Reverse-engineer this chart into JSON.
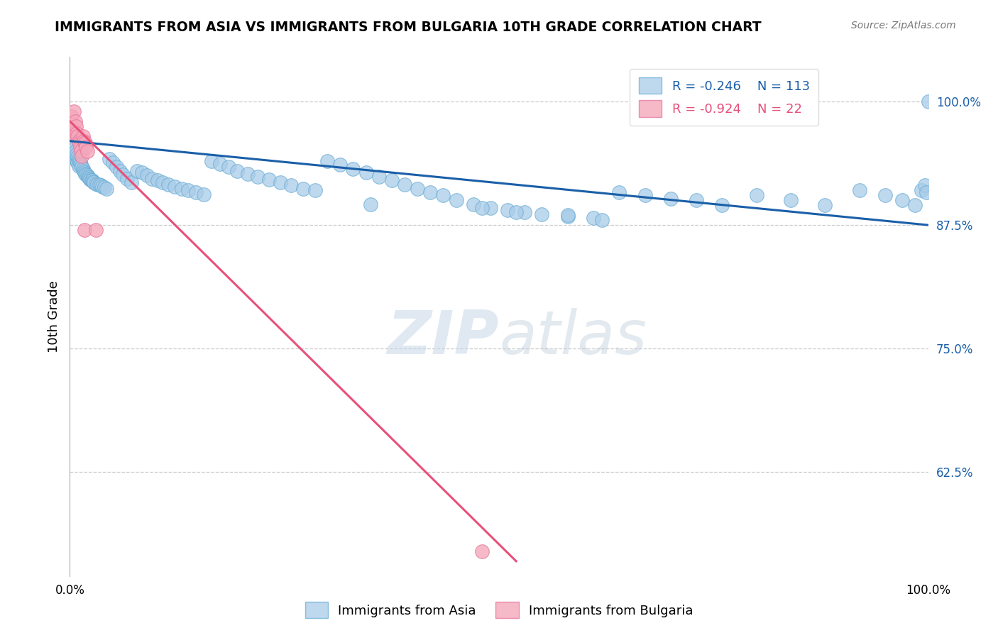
{
  "title": "IMMIGRANTS FROM ASIA VS IMMIGRANTS FROM BULGARIA 10TH GRADE CORRELATION CHART",
  "source": "Source: ZipAtlas.com",
  "ylabel": "10th Grade",
  "y_tick_labels": [
    "62.5%",
    "75.0%",
    "87.5%",
    "100.0%"
  ],
  "y_tick_values": [
    0.625,
    0.75,
    0.875,
    1.0
  ],
  "legend_blue_r": "R = -0.246",
  "legend_blue_n": "N = 113",
  "legend_pink_r": "R = -0.924",
  "legend_pink_n": "N = 22",
  "blue_color": "#a8cce8",
  "pink_color": "#f4a8bb",
  "blue_edge_color": "#6baed6",
  "pink_edge_color": "#e879a0",
  "blue_line_color": "#1a5fa8",
  "pink_line_color": "#e8507a",
  "background_color": "#ffffff",
  "grid_color": "#cccccc",
  "watermark_color": "#d0dce8",
  "blue_scatter_x": [
    0.001,
    0.002,
    0.002,
    0.003,
    0.003,
    0.004,
    0.004,
    0.005,
    0.005,
    0.006,
    0.006,
    0.007,
    0.007,
    0.008,
    0.008,
    0.009,
    0.009,
    0.01,
    0.01,
    0.011,
    0.012,
    0.013,
    0.014,
    0.015,
    0.016,
    0.017,
    0.018,
    0.019,
    0.02,
    0.021,
    0.022,
    0.023,
    0.024,
    0.025,
    0.026,
    0.027,
    0.028,
    0.03,
    0.032,
    0.034,
    0.036,
    0.038,
    0.04,
    0.043,
    0.046,
    0.05,
    0.054,
    0.058,
    0.062,
    0.067,
    0.072,
    0.078,
    0.084,
    0.09,
    0.096,
    0.102,
    0.108,
    0.115,
    0.122,
    0.13,
    0.138,
    0.147,
    0.156,
    0.165,
    0.175,
    0.185,
    0.195,
    0.207,
    0.219,
    0.232,
    0.245,
    0.258,
    0.272,
    0.286,
    0.3,
    0.315,
    0.33,
    0.345,
    0.36,
    0.375,
    0.39,
    0.405,
    0.42,
    0.435,
    0.45,
    0.47,
    0.49,
    0.51,
    0.53,
    0.55,
    0.58,
    0.61,
    0.64,
    0.67,
    0.7,
    0.73,
    0.76,
    0.8,
    0.84,
    0.88,
    0.92,
    0.95,
    0.97,
    0.985,
    0.992,
    0.996,
    0.998,
    1.0,
    0.35,
    0.48,
    0.52,
    0.58,
    0.62
  ],
  "blue_scatter_y": [
    0.96,
    0.965,
    0.958,
    0.962,
    0.955,
    0.96,
    0.95,
    0.956,
    0.948,
    0.953,
    0.944,
    0.95,
    0.942,
    0.947,
    0.94,
    0.944,
    0.938,
    0.942,
    0.935,
    0.94,
    0.938,
    0.936,
    0.934,
    0.932,
    0.93,
    0.928,
    0.927,
    0.926,
    0.925,
    0.924,
    0.923,
    0.922,
    0.921,
    0.92,
    0.92,
    0.919,
    0.918,
    0.917,
    0.916,
    0.916,
    0.915,
    0.914,
    0.913,
    0.912,
    0.942,
    0.938,
    0.934,
    0.93,
    0.926,
    0.922,
    0.918,
    0.93,
    0.928,
    0.925,
    0.922,
    0.92,
    0.918,
    0.916,
    0.914,
    0.912,
    0.91,
    0.908,
    0.906,
    0.94,
    0.937,
    0.934,
    0.93,
    0.927,
    0.924,
    0.921,
    0.918,
    0.915,
    0.912,
    0.91,
    0.94,
    0.936,
    0.932,
    0.928,
    0.924,
    0.92,
    0.916,
    0.912,
    0.908,
    0.905,
    0.9,
    0.896,
    0.892,
    0.89,
    0.888,
    0.886,
    0.884,
    0.882,
    0.908,
    0.905,
    0.902,
    0.9,
    0.895,
    0.905,
    0.9,
    0.895,
    0.91,
    0.905,
    0.9,
    0.895,
    0.91,
    0.915,
    0.908,
    1.0,
    0.896,
    0.892,
    0.888,
    0.885,
    0.88
  ],
  "pink_scatter_x": [
    0.001,
    0.002,
    0.003,
    0.004,
    0.005,
    0.006,
    0.007,
    0.008,
    0.009,
    0.01,
    0.011,
    0.012,
    0.013,
    0.014,
    0.015,
    0.016,
    0.017,
    0.018,
    0.019,
    0.02,
    0.03,
    0.48
  ],
  "pink_scatter_y": [
    0.97,
    0.985,
    0.972,
    0.968,
    0.99,
    0.98,
    0.975,
    0.968,
    0.965,
    0.96,
    0.958,
    0.954,
    0.95,
    0.945,
    0.965,
    0.96,
    0.87,
    0.958,
    0.954,
    0.95,
    0.87,
    0.545
  ],
  "blue_line_x0": 0.0,
  "blue_line_y0": 0.96,
  "blue_line_x1": 1.0,
  "blue_line_y1": 0.875,
  "pink_line_x0": 0.0,
  "pink_line_y0": 0.98,
  "pink_line_x1": 0.52,
  "pink_line_y1": 0.535,
  "xlim": [
    0.0,
    1.0
  ],
  "ylim": [
    0.52,
    1.045
  ]
}
